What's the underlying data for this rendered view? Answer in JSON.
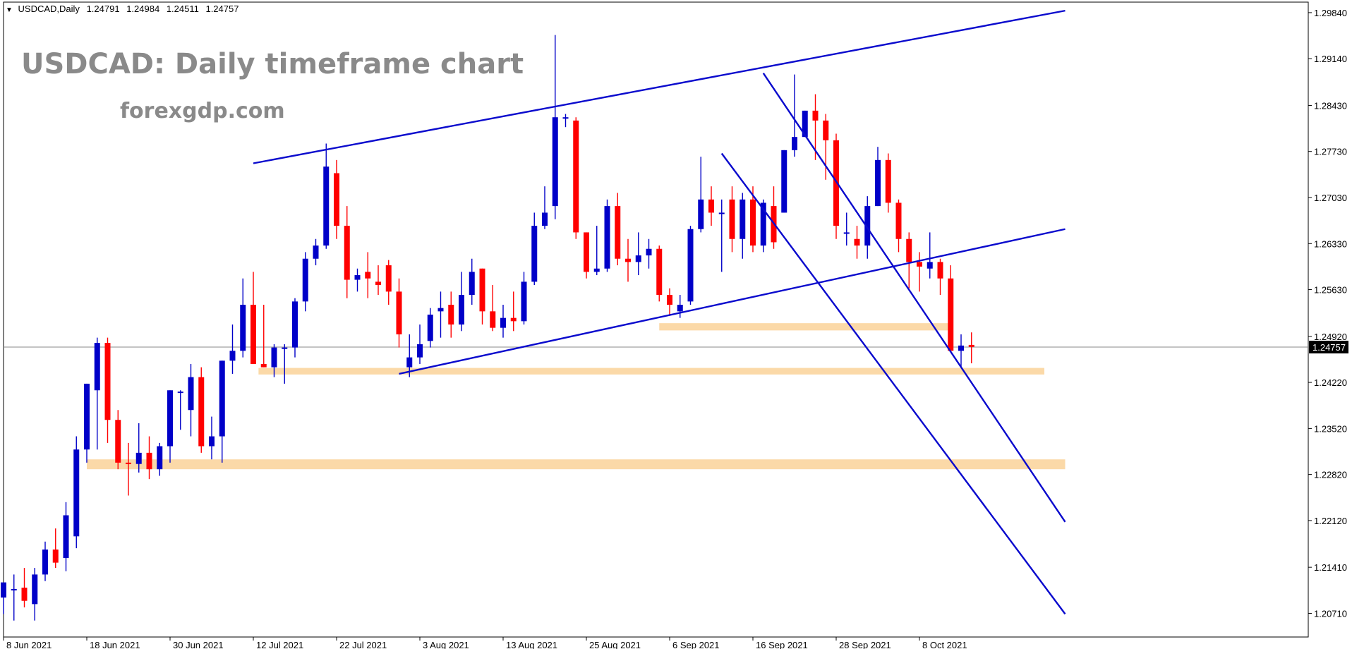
{
  "header": {
    "symbol_tf": "USDCAD,Daily",
    "open": "1.24791",
    "high": "1.24984",
    "low": "1.24511",
    "close": "1.24757"
  },
  "overlay": {
    "title": "USDCAD: Daily timeframe chart",
    "watermark": "forexgdp.com"
  },
  "colors": {
    "bull": "#0000c8",
    "bear": "#ff0000",
    "trendline": "#0a0acd",
    "zone": "#fbd9a8",
    "price_line": "#8a8a8a",
    "price_badge": "#000000"
  },
  "chart_data": {
    "type": "candlestick",
    "symbol": "USDCAD",
    "timeframe": "Daily",
    "title": "USDCAD: Daily timeframe chart",
    "ylim": [
      1.2035,
      1.3
    ],
    "y_ticks": [
      "1.29840",
      "1.29140",
      "1.28430",
      "1.27730",
      "1.27030",
      "1.26330",
      "1.25630",
      "1.24920",
      "1.24220",
      "1.23520",
      "1.22820",
      "1.22120",
      "1.21410",
      "1.20710"
    ],
    "x_ticks": [
      {
        "label": "8 Jun 2021",
        "bar": 0
      },
      {
        "label": "18 Jun 2021",
        "bar": 8
      },
      {
        "label": "30 Jun 2021",
        "bar": 16
      },
      {
        "label": "12 Jul 2021",
        "bar": 24
      },
      {
        "label": "22 Jul 2021",
        "bar": 32
      },
      {
        "label": "3 Aug 2021",
        "bar": 40
      },
      {
        "label": "13 Aug 2021",
        "bar": 48
      },
      {
        "label": "25 Aug 2021",
        "bar": 56
      },
      {
        "label": "6 Sep 2021",
        "bar": 64
      },
      {
        "label": "16 Sep 2021",
        "bar": 72
      },
      {
        "label": "28 Sep 2021",
        "bar": 80
      },
      {
        "label": "8 Oct 2021",
        "bar": 88
      }
    ],
    "current_price": "1.24757",
    "candles": [
      [
        1.2095,
        1.2115,
        1.207,
        1.2118
      ],
      [
        1.2108,
        1.213,
        1.206,
        1.2108
      ],
      [
        1.211,
        1.214,
        1.208,
        1.209
      ],
      [
        1.2085,
        1.214,
        1.206,
        1.213
      ],
      [
        1.213,
        1.218,
        1.212,
        1.2168
      ],
      [
        1.2168,
        1.22,
        1.214,
        1.2148
      ],
      [
        1.2155,
        1.224,
        1.2135,
        1.222
      ],
      [
        1.2188,
        1.234,
        1.217,
        1.232
      ],
      [
        1.232,
        1.242,
        1.23,
        1.242
      ],
      [
        1.241,
        1.249,
        1.232,
        1.2482
      ],
      [
        1.2482,
        1.249,
        1.233,
        1.2365
      ],
      [
        1.2365,
        1.238,
        1.229,
        1.23
      ],
      [
        1.23,
        1.233,
        1.225,
        1.2298
      ],
      [
        1.2298,
        1.236,
        1.2285,
        1.2315
      ],
      [
        1.2315,
        1.234,
        1.2275,
        1.229
      ],
      [
        1.229,
        1.233,
        1.228,
        1.2325
      ],
      [
        1.2325,
        1.241,
        1.23,
        1.241
      ],
      [
        1.2408,
        1.241,
        1.235,
        1.2408
      ],
      [
        1.238,
        1.245,
        1.234,
        1.243
      ],
      [
        1.243,
        1.2445,
        1.2315,
        1.2325
      ],
      [
        1.2325,
        1.237,
        1.2305,
        1.234
      ],
      [
        1.234,
        1.2455,
        1.23,
        1.2455
      ],
      [
        1.2455,
        1.251,
        1.2435,
        1.247
      ],
      [
        1.247,
        1.258,
        1.246,
        1.254
      ],
      [
        1.254,
        1.259,
        1.245,
        1.245
      ],
      [
        1.245,
        1.254,
        1.2445,
        1.2445
      ],
      [
        1.2445,
        1.248,
        1.243,
        1.2475
      ],
      [
        1.2475,
        1.248,
        1.242,
        1.2475
      ],
      [
        1.2475,
        1.255,
        1.246,
        1.2545
      ],
      [
        1.2545,
        1.262,
        1.253,
        1.261
      ],
      [
        1.261,
        1.264,
        1.26,
        1.263
      ],
      [
        1.263,
        1.2785,
        1.2625,
        1.275
      ],
      [
        1.274,
        1.276,
        1.264,
        1.266
      ],
      [
        1.266,
        1.269,
        1.255,
        1.2578
      ],
      [
        1.2578,
        1.2595,
        1.256,
        1.2585
      ],
      [
        1.259,
        1.262,
        1.255,
        1.258
      ],
      [
        1.2575,
        1.26,
        1.2555,
        1.257
      ],
      [
        1.26,
        1.2608,
        1.254,
        1.256
      ],
      [
        1.256,
        1.258,
        1.2475,
        1.2495
      ],
      [
        1.2445,
        1.2495,
        1.243,
        1.246
      ],
      [
        1.246,
        1.251,
        1.245,
        1.248
      ],
      [
        1.2485,
        1.2535,
        1.2475,
        1.2525
      ],
      [
        1.253,
        1.256,
        1.249,
        1.2535
      ],
      [
        1.254,
        1.256,
        1.249,
        1.251
      ],
      [
        1.251,
        1.259,
        1.25,
        1.2555
      ],
      [
        1.2555,
        1.261,
        1.254,
        1.259
      ],
      [
        1.2595,
        1.2595,
        1.251,
        1.253
      ],
      [
        1.253,
        1.257,
        1.25,
        1.2505
      ],
      [
        1.2505,
        1.254,
        1.249,
        1.252
      ],
      [
        1.252,
        1.256,
        1.25,
        1.2515
      ],
      [
        1.2515,
        1.259,
        1.251,
        1.2575
      ],
      [
        1.2575,
        1.268,
        1.257,
        1.266
      ],
      [
        1.266,
        1.272,
        1.2655,
        1.268
      ],
      [
        1.269,
        1.295,
        1.267,
        1.2825
      ],
      [
        1.2825,
        1.283,
        1.281,
        1.2825
      ],
      [
        1.282,
        1.2825,
        1.264,
        1.265
      ],
      [
        1.265,
        1.265,
        1.258,
        1.259
      ],
      [
        1.259,
        1.266,
        1.2585,
        1.2595
      ],
      [
        1.2595,
        1.27,
        1.259,
        1.269
      ],
      [
        1.269,
        1.271,
        1.26,
        1.261
      ],
      [
        1.261,
        1.264,
        1.2575,
        1.2605
      ],
      [
        1.2605,
        1.265,
        1.2585,
        1.2615
      ],
      [
        1.2615,
        1.264,
        1.2595,
        1.2625
      ],
      [
        1.2625,
        1.263,
        1.2545,
        1.2555
      ],
      [
        1.2555,
        1.2565,
        1.2525,
        1.254
      ],
      [
        1.253,
        1.2555,
        1.252,
        1.254
      ],
      [
        1.2545,
        1.266,
        1.254,
        1.2655
      ],
      [
        1.2655,
        1.2765,
        1.265,
        1.27
      ],
      [
        1.27,
        1.272,
        1.266,
        1.268
      ],
      [
        1.268,
        1.27,
        1.259,
        1.268
      ],
      [
        1.27,
        1.272,
        1.262,
        1.264
      ],
      [
        1.264,
        1.271,
        1.261,
        1.27
      ],
      [
        1.27,
        1.272,
        1.262,
        1.263
      ],
      [
        1.263,
        1.27,
        1.262,
        1.2695
      ],
      [
        1.269,
        1.272,
        1.2625,
        1.2635
      ],
      [
        1.268,
        1.2775,
        1.268,
        1.2775
      ],
      [
        1.2775,
        1.289,
        1.2765,
        1.2795
      ],
      [
        1.2795,
        1.2835,
        1.2795,
        1.2835
      ],
      [
        1.2835,
        1.286,
        1.276,
        1.282
      ],
      [
        1.282,
        1.283,
        1.273,
        1.279
      ],
      [
        1.279,
        1.28,
        1.264,
        1.266
      ],
      [
        1.265,
        1.268,
        1.263,
        1.265
      ],
      [
        1.264,
        1.266,
        1.261,
        1.263
      ],
      [
        1.263,
        1.2705,
        1.261,
        1.269
      ],
      [
        1.269,
        1.278,
        1.269,
        1.276
      ],
      [
        1.276,
        1.277,
        1.268,
        1.2695
      ],
      [
        1.2695,
        1.27,
        1.262,
        1.264
      ],
      [
        1.264,
        1.265,
        1.2565,
        1.2605
      ],
      [
        1.2605,
        1.262,
        1.256,
        1.2598
      ],
      [
        1.2595,
        1.265,
        1.258,
        1.2605
      ],
      [
        1.2605,
        1.261,
        1.2555,
        1.258
      ],
      [
        1.258,
        1.26,
        1.2475,
        1.247
      ],
      [
        1.247,
        1.2495,
        1.2445,
        1.2478
      ],
      [
        1.2479,
        1.2498,
        1.2451,
        1.2476
      ]
    ],
    "trendlines": [
      {
        "from": [
          24,
          1.2755
        ],
        "to": [
          102,
          1.2987
        ]
      },
      {
        "from": [
          38,
          1.2435
        ],
        "to": [
          102,
          1.2655
        ]
      },
      {
        "from": [
          69,
          1.277
        ],
        "to": [
          102,
          1.207
        ]
      },
      {
        "from": [
          73,
          1.2892
        ],
        "to": [
          102,
          1.221
        ]
      }
    ],
    "zones": [
      {
        "from": 24.5,
        "to": 100,
        "low": 1.2434,
        "high": 1.2444
      },
      {
        "from": 8,
        "to": 102,
        "low": 1.229,
        "high": 1.2305
      },
      {
        "from": 63,
        "to": 91,
        "low": 1.2501,
        "high": 1.2512
      }
    ]
  }
}
